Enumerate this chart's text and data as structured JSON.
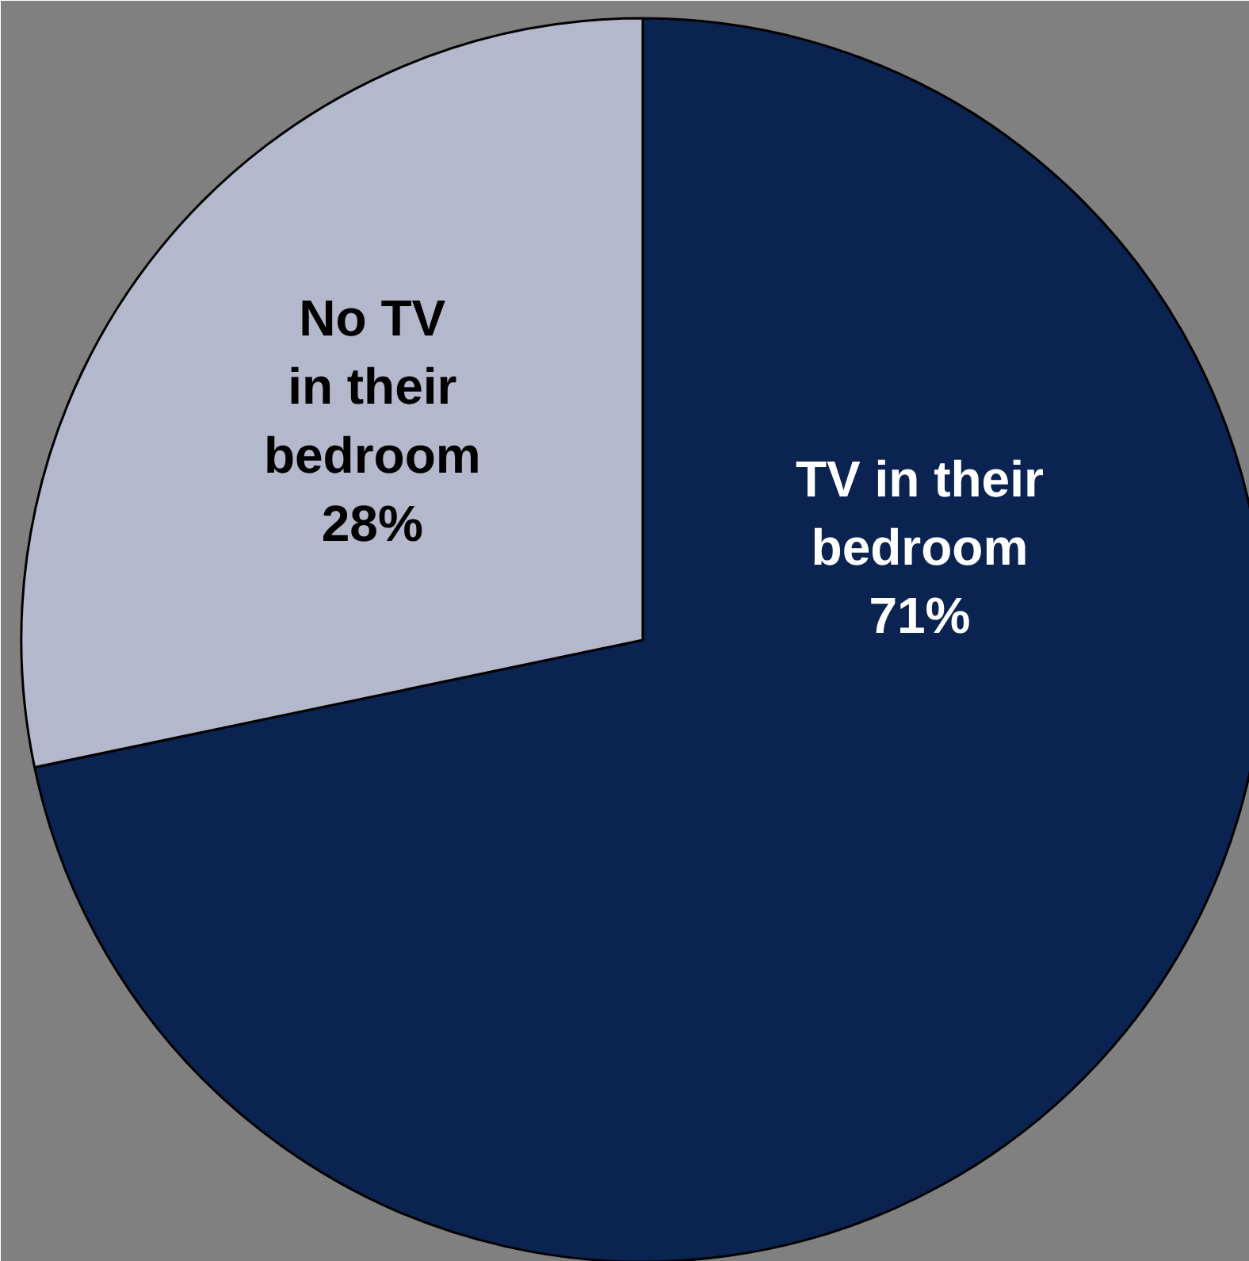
{
  "chart_data": {
    "type": "pie",
    "categories": [
      "TV in their\nbedroom",
      "No TV\nin their\nbedroom"
    ],
    "values": [
      71,
      28
    ],
    "colors": [
      "#0a2350",
      "#b4b8cc"
    ],
    "value_labels": [
      "71%",
      "28%"
    ]
  }
}
